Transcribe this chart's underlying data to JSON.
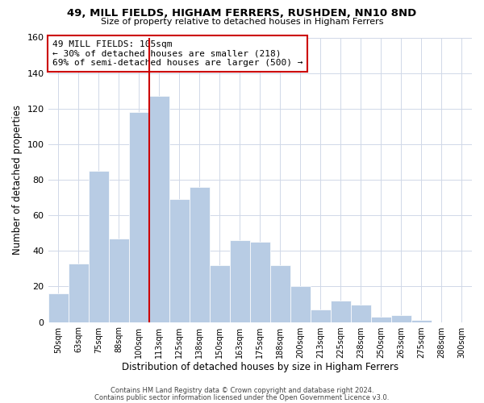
{
  "title": "49, MILL FIELDS, HIGHAM FERRERS, RUSHDEN, NN10 8ND",
  "subtitle": "Size of property relative to detached houses in Higham Ferrers",
  "xlabel": "Distribution of detached houses by size in Higham Ferrers",
  "ylabel": "Number of detached properties",
  "bar_labels": [
    "50sqm",
    "63sqm",
    "75sqm",
    "88sqm",
    "100sqm",
    "113sqm",
    "125sqm",
    "138sqm",
    "150sqm",
    "163sqm",
    "175sqm",
    "188sqm",
    "200sqm",
    "213sqm",
    "225sqm",
    "238sqm",
    "250sqm",
    "263sqm",
    "275sqm",
    "288sqm",
    "300sqm"
  ],
  "bar_values": [
    16,
    33,
    85,
    47,
    118,
    127,
    69,
    76,
    32,
    46,
    45,
    32,
    20,
    7,
    12,
    10,
    3,
    4,
    1,
    0,
    0
  ],
  "bar_color": "#b8cce4",
  "bar_edge_color": "#ffffff",
  "highlight_line_color": "#cc0000",
  "ylim": [
    0,
    160
  ],
  "yticks": [
    0,
    20,
    40,
    60,
    80,
    100,
    120,
    140,
    160
  ],
  "annotation_title": "49 MILL FIELDS: 105sqm",
  "annotation_line1": "← 30% of detached houses are smaller (218)",
  "annotation_line2": "69% of semi-detached houses are larger (500) →",
  "annotation_box_color": "#ffffff",
  "annotation_border_color": "#cc0000",
  "footer1": "Contains HM Land Registry data © Crown copyright and database right 2024.",
  "footer2": "Contains public sector information licensed under the Open Government Licence v3.0.",
  "background_color": "#ffffff",
  "grid_color": "#d0d8e8"
}
